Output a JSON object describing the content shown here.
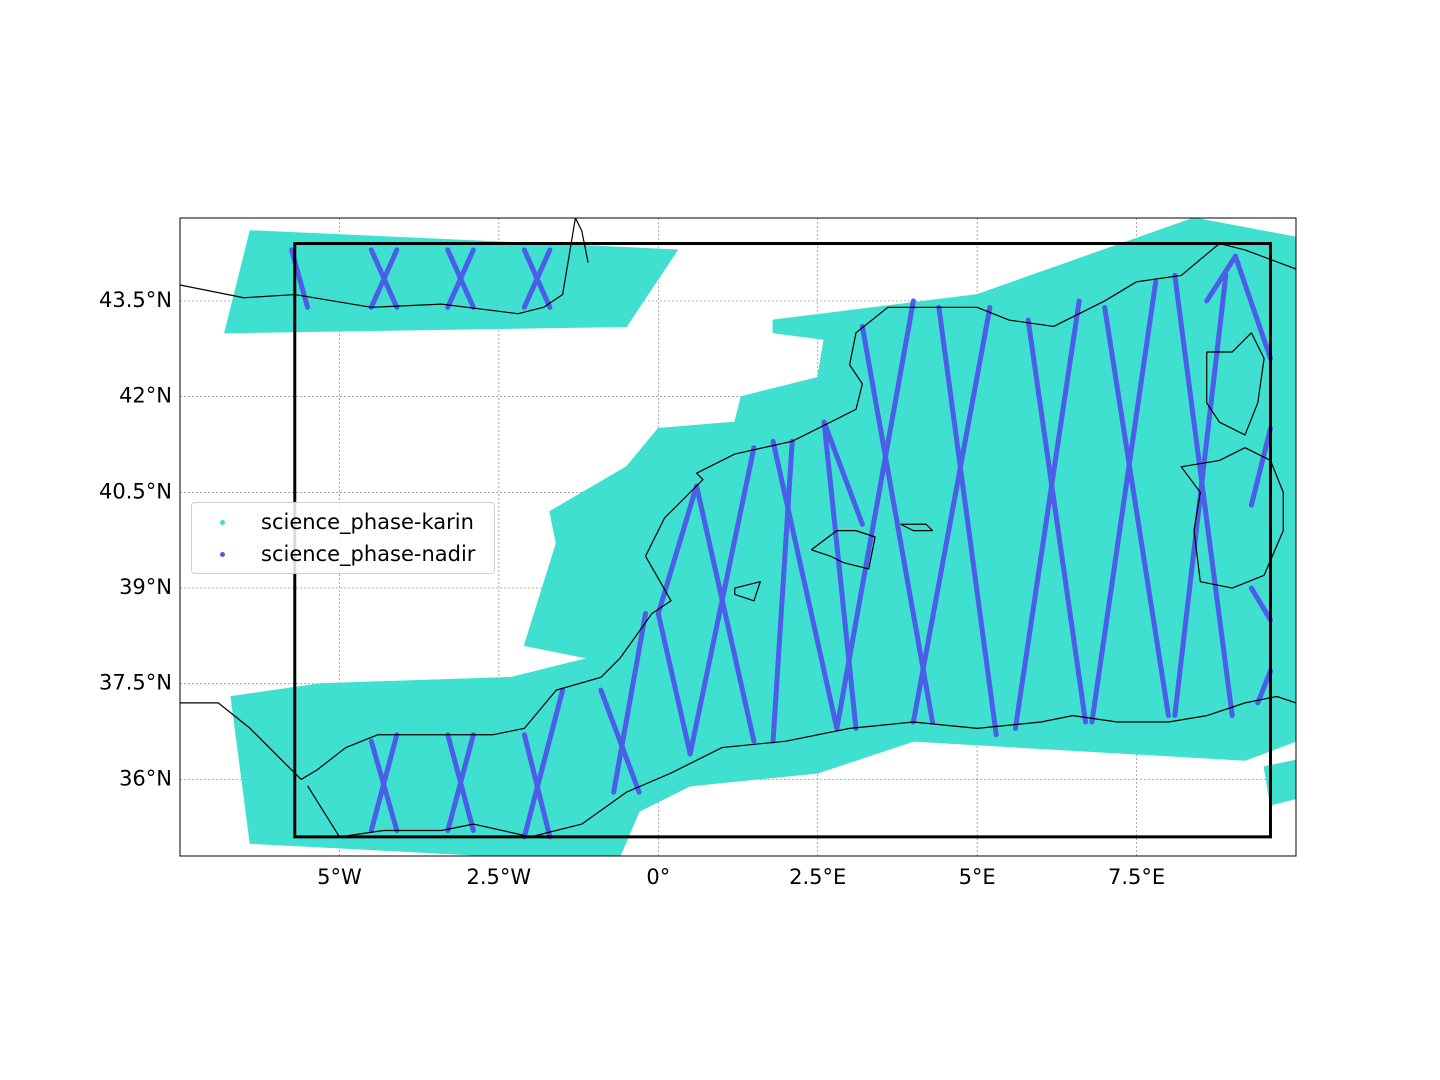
{
  "colors": {
    "karin": "#40e0d0",
    "nadir": "#4a5ee8",
    "coast": "#000000",
    "grid": "#888888",
    "box": "#000000"
  },
  "map": {
    "lon_range": [
      -7.5,
      10.0
    ],
    "lat_range": [
      34.8,
      44.8
    ],
    "bbox": {
      "lon": [
        -5.7,
        9.6
      ],
      "lat": [
        35.1,
        44.4
      ]
    },
    "x_ticks": [
      -5,
      -2.5,
      0,
      2.5,
      5,
      7.5
    ],
    "x_tick_labels": [
      "5°W",
      "2.5°W",
      "0°",
      "2.5°E",
      "5°E",
      "7.5°E"
    ],
    "y_ticks": [
      36,
      37.5,
      39,
      40.5,
      42,
      43.5
    ],
    "y_tick_labels": [
      "36°N",
      "37.5°N",
      "39°N",
      "40.5°N",
      "42°N",
      "43.5°N"
    ],
    "grid": true
  },
  "legend": {
    "placement": "center-left",
    "items": [
      {
        "label": "science_phase-karin",
        "color_key": "karin"
      },
      {
        "label": "science_phase-nadir",
        "color_key": "nadir"
      }
    ]
  },
  "tracks": {
    "nadir_segments": [
      [
        [
          -5.75,
          44.3
        ],
        [
          -5.5,
          43.4
        ]
      ],
      [
        [
          -4.5,
          44.3
        ],
        [
          -4.1,
          43.4
        ]
      ],
      [
        [
          -4.1,
          44.3
        ],
        [
          -4.5,
          43.4
        ]
      ],
      [
        [
          -3.3,
          44.3
        ],
        [
          -2.9,
          43.4
        ]
      ],
      [
        [
          -2.9,
          44.3
        ],
        [
          -3.3,
          43.4
        ]
      ],
      [
        [
          -2.1,
          44.3
        ],
        [
          -1.7,
          43.4
        ]
      ],
      [
        [
          -1.7,
          44.3
        ],
        [
          -2.1,
          43.4
        ]
      ],
      [
        [
          -4.5,
          36.6
        ],
        [
          -4.1,
          35.2
        ]
      ],
      [
        [
          -4.1,
          36.7
        ],
        [
          -4.5,
          35.2
        ]
      ],
      [
        [
          -3.3,
          36.7
        ],
        [
          -2.9,
          35.2
        ]
      ],
      [
        [
          -2.9,
          36.7
        ],
        [
          -3.3,
          35.2
        ]
      ],
      [
        [
          -2.1,
          36.7
        ],
        [
          -1.7,
          35.1
        ]
      ],
      [
        [
          -1.5,
          37.4
        ],
        [
          -2.1,
          35.1
        ]
      ],
      [
        [
          -0.9,
          37.4
        ],
        [
          -0.3,
          35.8
        ]
      ],
      [
        [
          -0.2,
          38.6
        ],
        [
          -0.7,
          35.8
        ]
      ],
      [
        [
          0.0,
          38.6
        ],
        [
          0.5,
          36.4
        ]
      ],
      [
        [
          0.6,
          40.6
        ],
        [
          0.0,
          38.6
        ]
      ],
      [
        [
          0.6,
          40.6
        ],
        [
          1.5,
          36.6
        ]
      ],
      [
        [
          1.5,
          41.2
        ],
        [
          0.5,
          36.4
        ]
      ],
      [
        [
          2.1,
          41.3
        ],
        [
          1.8,
          36.6
        ]
      ],
      [
        [
          1.8,
          41.3
        ],
        [
          2.8,
          36.8
        ]
      ],
      [
        [
          2.6,
          41.6
        ],
        [
          3.1,
          36.8
        ]
      ],
      [
        [
          2.6,
          41.6
        ],
        [
          3.2,
          40.0
        ]
      ],
      [
        [
          3.2,
          43.1
        ],
        [
          4.3,
          36.9
        ]
      ],
      [
        [
          4.0,
          43.5
        ],
        [
          2.8,
          36.8
        ]
      ],
      [
        [
          4.4,
          43.4
        ],
        [
          5.3,
          36.7
        ]
      ],
      [
        [
          5.2,
          43.4
        ],
        [
          4.0,
          36.9
        ]
      ],
      [
        [
          5.8,
          43.2
        ],
        [
          6.7,
          36.9
        ]
      ],
      [
        [
          6.6,
          43.5
        ],
        [
          5.6,
          36.8
        ]
      ],
      [
        [
          7.0,
          43.4
        ],
        [
          8.0,
          37.0
        ]
      ],
      [
        [
          7.8,
          43.8
        ],
        [
          6.8,
          36.9
        ]
      ],
      [
        [
          8.1,
          43.9
        ],
        [
          9.0,
          37.0
        ]
      ],
      [
        [
          8.9,
          43.9
        ],
        [
          8.1,
          37.0
        ]
      ],
      [
        [
          9.05,
          44.2
        ],
        [
          9.6,
          42.6
        ]
      ],
      [
        [
          9.05,
          44.2
        ],
        [
          8.6,
          43.5
        ]
      ],
      [
        [
          9.6,
          41.5
        ],
        [
          9.3,
          40.3
        ]
      ],
      [
        [
          9.3,
          39.0
        ],
        [
          9.6,
          38.5
        ]
      ],
      [
        [
          9.6,
          37.7
        ],
        [
          9.4,
          37.2
        ]
      ]
    ],
    "karin_swaths": [
      [
        [
          -6.4,
          44.6
        ],
        [
          0.3,
          44.3
        ],
        [
          -0.5,
          43.1
        ],
        [
          -6.8,
          43.0
        ]
      ],
      [
        [
          1.8,
          43.2
        ],
        [
          5.0,
          43.6
        ],
        [
          8.4,
          44.8
        ],
        [
          10.0,
          44.5
        ],
        [
          10.0,
          36.6
        ],
        [
          9.2,
          36.3
        ],
        [
          4.0,
          36.6
        ],
        [
          2.5,
          36.1
        ],
        [
          0.5,
          35.9
        ],
        [
          -0.3,
          35.5
        ],
        [
          -0.6,
          34.8
        ],
        [
          -1.8,
          34.8
        ],
        [
          -2.6,
          34.8
        ],
        [
          -6.4,
          35.0
        ],
        [
          -6.7,
          37.3
        ],
        [
          -5.3,
          37.5
        ],
        [
          -2.3,
          37.6
        ],
        [
          -1.1,
          37.9
        ],
        [
          -2.1,
          38.1
        ],
        [
          -1.6,
          39.7
        ],
        [
          -1.7,
          40.2
        ],
        [
          -0.5,
          40.9
        ],
        [
          0.0,
          41.5
        ],
        [
          1.2,
          41.6
        ],
        [
          1.3,
          42.0
        ],
        [
          2.5,
          42.3
        ],
        [
          2.6,
          42.9
        ],
        [
          1.8,
          43.0
        ]
      ],
      [
        [
          9.5,
          36.2
        ],
        [
          10.0,
          36.3
        ],
        [
          10.0,
          35.7
        ],
        [
          9.6,
          35.6
        ]
      ]
    ],
    "coastlines": [
      [
        [
          -7.5,
          43.75
        ],
        [
          -6.5,
          43.55
        ],
        [
          -5.7,
          43.6
        ],
        [
          -4.5,
          43.4
        ],
        [
          -3.4,
          43.45
        ],
        [
          -2.2,
          43.3
        ],
        [
          -1.8,
          43.4
        ],
        [
          -1.5,
          43.6
        ],
        [
          -1.3,
          44.8
        ],
        [
          -1.2,
          44.6
        ],
        [
          -1.1,
          44.1
        ]
      ],
      [
        [
          -7.5,
          37.2
        ],
        [
          -6.9,
          37.2
        ],
        [
          -6.4,
          36.8
        ],
        [
          -6.0,
          36.4
        ],
        [
          -5.6,
          36.0
        ],
        [
          -5.35,
          36.15
        ],
        [
          -4.9,
          36.5
        ],
        [
          -4.4,
          36.7
        ],
        [
          -3.7,
          36.7
        ],
        [
          -2.6,
          36.7
        ],
        [
          -2.1,
          36.8
        ],
        [
          -1.6,
          37.4
        ],
        [
          -0.9,
          37.6
        ],
        [
          -0.6,
          37.9
        ],
        [
          -0.1,
          38.6
        ],
        [
          0.2,
          38.8
        ],
        [
          -0.2,
          39.5
        ],
        [
          0.1,
          40.1
        ],
        [
          0.7,
          40.7
        ],
        [
          0.6,
          40.8
        ],
        [
          1.2,
          41.1
        ],
        [
          2.1,
          41.3
        ],
        [
          3.1,
          41.8
        ],
        [
          3.2,
          42.2
        ],
        [
          3.0,
          42.5
        ],
        [
          3.1,
          43.0
        ],
        [
          3.6,
          43.4
        ],
        [
          4.4,
          43.4
        ],
        [
          5.0,
          43.4
        ],
        [
          5.5,
          43.2
        ],
        [
          6.2,
          43.1
        ],
        [
          7.0,
          43.5
        ],
        [
          7.5,
          43.8
        ],
        [
          8.2,
          43.9
        ],
        [
          8.8,
          44.4
        ],
        [
          9.2,
          44.3
        ],
        [
          10.0,
          44.0
        ]
      ],
      [
        [
          -5.5,
          35.9
        ],
        [
          -5.0,
          35.1
        ],
        [
          -4.3,
          35.2
        ],
        [
          -3.4,
          35.2
        ],
        [
          -2.9,
          35.3
        ],
        [
          -2.0,
          35.1
        ],
        [
          -1.2,
          35.3
        ],
        [
          -0.5,
          35.8
        ],
        [
          0.2,
          36.1
        ],
        [
          1.0,
          36.5
        ],
        [
          2.0,
          36.6
        ],
        [
          3.0,
          36.8
        ],
        [
          4.0,
          36.9
        ],
        [
          5.0,
          36.8
        ],
        [
          6.0,
          36.9
        ],
        [
          6.5,
          37.0
        ],
        [
          7.2,
          36.9
        ],
        [
          8.0,
          36.9
        ],
        [
          8.6,
          37.0
        ],
        [
          9.2,
          37.2
        ],
        [
          9.7,
          37.3
        ],
        [
          10.0,
          37.2
        ]
      ],
      [
        [
          8.6,
          42.7
        ],
        [
          9.0,
          42.7
        ],
        [
          9.3,
          43.0
        ],
        [
          9.5,
          42.6
        ],
        [
          9.4,
          41.9
        ],
        [
          9.2,
          41.4
        ],
        [
          8.8,
          41.6
        ],
        [
          8.6,
          41.9
        ],
        [
          8.6,
          42.3
        ],
        [
          8.6,
          42.7
        ]
      ],
      [
        [
          9.2,
          41.2
        ],
        [
          9.6,
          41.0
        ],
        [
          9.8,
          40.5
        ],
        [
          9.8,
          39.9
        ],
        [
          9.5,
          39.2
        ],
        [
          9.0,
          39.0
        ],
        [
          8.5,
          39.1
        ],
        [
          8.4,
          39.9
        ],
        [
          8.5,
          40.5
        ],
        [
          8.2,
          40.9
        ],
        [
          8.8,
          41.0
        ],
        [
          9.2,
          41.2
        ]
      ],
      [
        [
          2.4,
          39.6
        ],
        [
          2.8,
          39.9
        ],
        [
          3.1,
          39.9
        ],
        [
          3.4,
          39.8
        ],
        [
          3.3,
          39.3
        ],
        [
          2.9,
          39.4
        ],
        [
          2.7,
          39.5
        ],
        [
          2.4,
          39.6
        ]
      ],
      [
        [
          3.8,
          40.0
        ],
        [
          4.2,
          40.0
        ],
        [
          4.3,
          39.9
        ],
        [
          4.0,
          39.9
        ],
        [
          3.8,
          40.0
        ]
      ],
      [
        [
          1.2,
          39.0
        ],
        [
          1.6,
          39.1
        ],
        [
          1.5,
          38.8
        ],
        [
          1.2,
          38.9
        ],
        [
          1.2,
          39.0
        ]
      ]
    ]
  }
}
